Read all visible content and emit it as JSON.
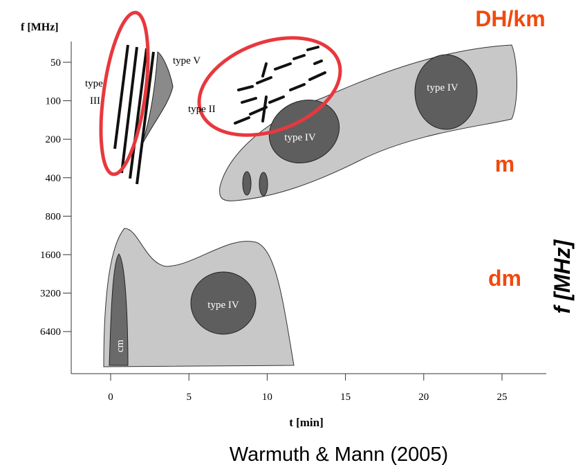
{
  "header": {
    "label": "DH/km"
  },
  "axes": {
    "y_label": "f [MHz]",
    "y_ticks": [
      "50",
      "100",
      "200",
      "400",
      "800",
      "1600",
      "3200",
      "6400"
    ],
    "x_label": "t [min]",
    "x_ticks": [
      "0",
      "5",
      "10",
      "15",
      "20",
      "25"
    ],
    "y_label_right": "f [MHz]"
  },
  "bands": {
    "m": "m",
    "dm": "dm"
  },
  "regions": {
    "type_v": "type V",
    "type_iii_1": "type",
    "type_iii_2": "III",
    "type_ii": "type II",
    "type_iv_m1": "type IV",
    "type_iv_m2": "type IV",
    "type_iv_dm": "type IV",
    "cm": "cm"
  },
  "caption": "Warmuth & Mann (2005)"
}
